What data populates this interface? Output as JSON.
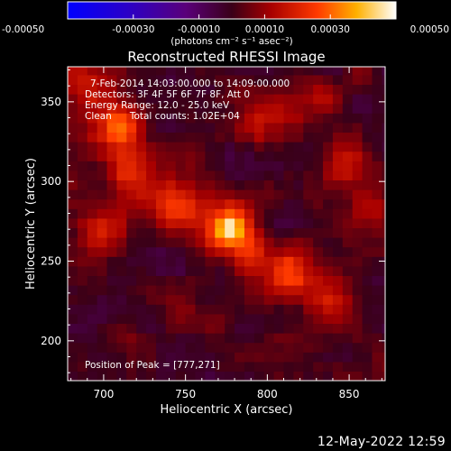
{
  "chart_data": {
    "type": "heatmap",
    "title": "Reconstructed RHESSI Image",
    "xlabel": "Heliocentric X (arcsec)",
    "ylabel": "Heliocentric Y (arcsec)",
    "xlim": [
      678,
      872
    ],
    "ylim": [
      175,
      372
    ],
    "x_ticks": [
      700,
      750,
      800,
      850
    ],
    "y_ticks": [
      200,
      250,
      300,
      350
    ],
    "colorbar": {
      "min": -0.0005,
      "max": 0.0005,
      "tick_values": [
        -0.0005,
        -0.0003,
        -0.0001,
        0.0001,
        0.0003,
        0.0005
      ],
      "tick_labels": [
        "-0.00050",
        "-0.00030",
        "-0.00010",
        "0.00010",
        "0.00030",
        "0.00050"
      ],
      "unit_label": "(photons cm⁻² s⁻¹ asec⁻²)"
    },
    "annotations": {
      "time_range": "7-Feb-2014 14:03:00.000 to 14:09:00.000",
      "detectors": "Detectors: 3F 4F 5F 6F 7F 8F, Att 0",
      "energy_range": "Energy Range: 12.0 - 25.0 keV",
      "method_counts": "Clean      Total counts: 1.02E+04",
      "peak_position": "Position of Peak = [777,271]"
    },
    "peak": {
      "x": 777,
      "y": 271,
      "value": 0.0005
    },
    "sources": [
      {
        "x": 708,
        "y": 335,
        "amplitude": 0.00034
      },
      {
        "x": 718,
        "y": 305,
        "amplitude": 0.0002
      },
      {
        "x": 745,
        "y": 285,
        "amplitude": 0.00022
      },
      {
        "x": 777,
        "y": 271,
        "amplitude": 0.00032
      },
      {
        "x": 700,
        "y": 268,
        "amplitude": 0.00018
      },
      {
        "x": 790,
        "y": 250,
        "amplitude": 0.00018
      },
      {
        "x": 815,
        "y": 242,
        "amplitude": 0.00026
      },
      {
        "x": 840,
        "y": 225,
        "amplitude": 0.00018
      },
      {
        "x": 848,
        "y": 310,
        "amplitude": 0.00014
      },
      {
        "x": 800,
        "y": 340,
        "amplitude": 0.00013
      },
      {
        "x": 830,
        "y": 350,
        "amplitude": 0.00012
      },
      {
        "x": 860,
        "y": 280,
        "amplitude": 0.0001
      },
      {
        "x": 690,
        "y": 360,
        "amplitude": 0.00016
      },
      {
        "x": 760,
        "y": 215,
        "amplitude": 8e-05
      }
    ],
    "grid": false,
    "legend": "none"
  },
  "date_stamp": "12-May-2022 12:59"
}
